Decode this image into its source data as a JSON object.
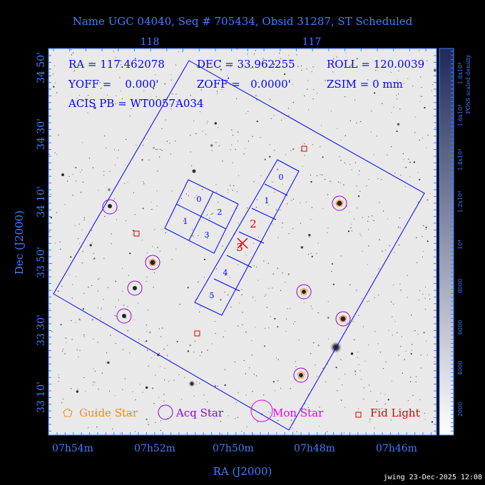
{
  "title": "Name UGC 04040, Seq # 705434, Obsid 31287, ST Scheduled",
  "info": {
    "ra": "RA = 117.462078",
    "dec": "DEC = 33.962255",
    "roll": "ROLL = 120.0039",
    "yoff": "YOFF =    0.000'",
    "zoff": "ZOFF =   0.0000'",
    "zsim": "ZSIM = 0 mm",
    "acis_pb": "ACIS PB = WT0057A034"
  },
  "top_axis": {
    "ticks": [
      "118",
      "117"
    ]
  },
  "ra_axis": {
    "label": "RA (J2000)",
    "ticks": [
      "07h54m",
      "07h52m",
      "07h50m",
      "07h48m",
      "07h46m"
    ]
  },
  "dec_axis": {
    "label": "Dec (J2000)",
    "ticks": [
      "34 50'",
      "34 30'",
      "34 10'",
      "33 50'",
      "33 30'",
      "33 10'"
    ]
  },
  "colorbar": {
    "label": "POSS scaled density",
    "ticks": [
      "1.8x10⁴",
      "1.6x10⁴",
      "1.4x10⁴",
      "1.2x10⁴",
      "10⁴",
      "8000",
      "6000",
      "4000",
      "2000"
    ]
  },
  "chips": {
    "acis_i": [
      "0",
      "2",
      "1",
      "3"
    ],
    "acis_s": [
      "0",
      "1",
      "2",
      "3",
      "4",
      "5"
    ]
  },
  "legend": {
    "guide": "Guide Star",
    "acq": "Acq Star",
    "mon": "Mon Star",
    "fid": "Fid Light"
  },
  "footer": "jwing 23-Dec-2025 12:08",
  "colors": {
    "background": "#000000",
    "label_blue": "#3f7fff",
    "plot_blue": "#0000ff",
    "acq_purple": "#9400d3",
    "guide_orange": "#ff8c00",
    "mon_magenta": "#ee00ee",
    "fid_red": "#dd0000",
    "sky": "#e9e9e9"
  }
}
